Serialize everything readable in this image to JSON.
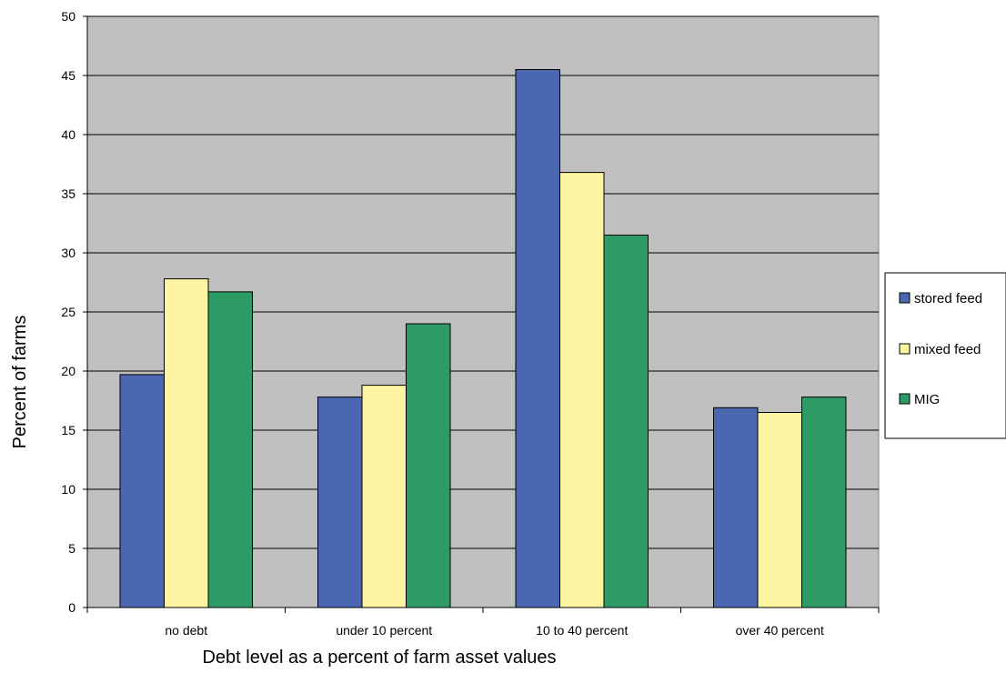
{
  "chart_data": {
    "type": "bar",
    "title": "",
    "xlabel": "Debt level as a percent of farm asset values",
    "ylabel": "Percent of farms",
    "categories": [
      "no debt",
      "under 10 percent",
      "10 to 40 percent",
      "over 40 percent"
    ],
    "series": [
      {
        "name": "stored feed",
        "color": "#4a67b0",
        "values": [
          19.7,
          17.8,
          45.5,
          16.9
        ]
      },
      {
        "name": "mixed feed",
        "color": "#fdf4a1",
        "values": [
          27.8,
          18.8,
          36.8,
          16.5
        ]
      },
      {
        "name": "MIG",
        "color": "#2e9a66",
        "values": [
          26.7,
          24.0,
          31.5,
          17.8
        ]
      }
    ],
    "ylim": [
      0,
      50
    ],
    "yticks": [
      0,
      5,
      10,
      15,
      20,
      25,
      30,
      35,
      40,
      45,
      50
    ],
    "grid": true,
    "plot_background": "#c0c0c0",
    "legend_position": "right"
  }
}
